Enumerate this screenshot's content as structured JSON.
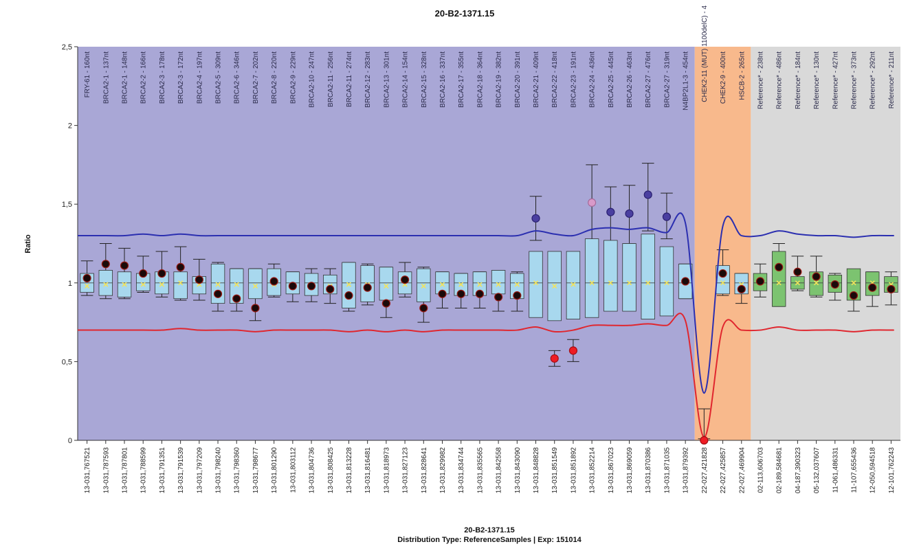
{
  "chart_data": {
    "type": "box",
    "title": "20-B2-1371.15",
    "footer_line1": "20-B2-1371.15",
    "footer_line2": "Distribution Type: ReferenceSamples | Exp: 151014",
    "ylabel": "Ratio",
    "ylim": [
      0,
      2.5
    ],
    "yticks": [
      "0",
      "0,5",
      "1",
      "1,5",
      "2",
      "2,5"
    ],
    "regions": [
      {
        "name": "target",
        "from": 0,
        "to": 33,
        "color": "#a9a7d6"
      },
      {
        "name": "mutation",
        "from": 33,
        "to": 36,
        "color": "#f8b98c"
      },
      {
        "name": "reference",
        "from": 36,
        "to": 44,
        "color": "#d9d9d9"
      }
    ],
    "probes": [
      "FRY-61 - 160nt",
      "BRCA2-1 - 137nt",
      "BRCA2-1 - 148nt",
      "BRCA2-2 - 166nt",
      "BRCA2-3 - 178nt",
      "BRCA2-3 - 172nt",
      "BRCA2-4 - 197nt",
      "BRCA2-5 - 309nt",
      "BRCA2-6 - 346nt",
      "BRCA2-7 - 202nt",
      "BRCA2-8 - 220nt",
      "BRCA2-9 - 229nt",
      "BRCA2-10 - 247nt",
      "BRCA2-11 - 256nt",
      "BRCA2-11 - 274nt",
      "BRCA2-12 - 283nt",
      "BRCA2-13 - 301nt",
      "BRCA2-14 - 154nt",
      "BRCA2-15 - 328nt",
      "BRCA2-16 - 337nt",
      "BRCA2-17 - 355nt",
      "BRCA2-18 - 364nt",
      "BRCA2-19 - 382nt",
      "BRCA2-20 - 391nt",
      "BRCA2-21 - 409nt",
      "BRCA2-22 - 418nt",
      "BRCA2-23 - 191nt",
      "BRCA2-24 - 436nt",
      "BRCA2-25 - 445nt",
      "BRCA2-26 - 463nt",
      "BRCA2-27 - 476nt",
      "BRCA2-27 - 319nt",
      "N4BP2L1-3 - 454nt",
      "CHEK2-11 (MUT) 1100delC) - 4",
      "CHEK2-9 - 400nt",
      "HSCB-2 - 265nt",
      "Reference* - 238nt",
      "Reference* - 486nt",
      "Reference* - 184nt",
      "Reference* - 130nt",
      "Reference* - 427nt",
      "Reference* - 373nt",
      "Reference* - 292nt",
      "Reference* - 211nt"
    ],
    "positions": [
      "13-031,767521",
      "13-031,787593",
      "13-031,787801",
      "13-031,788599",
      "13-031,791351",
      "13-031,791539",
      "13-031,797209",
      "13-031,798240",
      "13-031,798360",
      "13-031,798677",
      "13-031,801290",
      "13-031,803112",
      "13-031,804736",
      "13-031,808425",
      "13-031,813228",
      "13-031,816481",
      "13-031,818973",
      "13-031,827123",
      "13-031,828641",
      "13-031,829982",
      "13-031,834744",
      "13-031,835565",
      "13-031,842558",
      "13-031,843090",
      "13-031,848828",
      "13-031,851549",
      "13-031,851892",
      "13-031,852214",
      "13-031,867023",
      "13-031,869059",
      "13-031,870386",
      "13-031,871035",
      "13-031,879392",
      "22-027,421828",
      "22-027,425857",
      "22-027,469904",
      "02-113,606703",
      "02-189,584681",
      "04-187,390323",
      "05-132,037607",
      "11-061,486331",
      "11-107,655436",
      "12-050,594518",
      "12-101,762243"
    ],
    "box_low": [
      0.94,
      0.92,
      0.91,
      0.95,
      0.93,
      0.9,
      0.93,
      0.87,
      0.87,
      0.9,
      0.92,
      0.93,
      0.92,
      0.93,
      0.84,
      0.88,
      0.89,
      0.93,
      0.88,
      0.93,
      0.92,
      0.92,
      0.93,
      0.9,
      0.78,
      0.76,
      0.77,
      0.78,
      0.82,
      0.82,
      0.77,
      0.79,
      0.9,
      null,
      0.93,
      0.93,
      0.95,
      0.85,
      0.96,
      0.92,
      0.94,
      0.89,
      0.92,
      0.94
    ],
    "box_high": [
      1.06,
      1.08,
      1.07,
      1.06,
      1.07,
      1.07,
      1.04,
      1.12,
      1.09,
      1.09,
      1.09,
      1.07,
      1.06,
      1.05,
      1.13,
      1.11,
      1.1,
      1.07,
      1.09,
      1.07,
      1.06,
      1.07,
      1.08,
      1.06,
      1.2,
      1.2,
      1.2,
      1.28,
      1.27,
      1.25,
      1.31,
      1.23,
      1.12,
      null,
      1.11,
      1.06,
      1.06,
      1.2,
      1.04,
      1.07,
      1.05,
      1.09,
      1.07,
      1.04
    ],
    "medians": [
      0.98,
      0.99,
      0.99,
      0.99,
      0.99,
      1.0,
      0.99,
      0.99,
      0.99,
      0.98,
      0.99,
      0.98,
      0.98,
      0.98,
      0.99,
      0.99,
      0.98,
      0.99,
      0.98,
      0.99,
      0.99,
      0.99,
      0.99,
      0.99,
      1.0,
      0.98,
      0.99,
      1.0,
      1.0,
      1.0,
      1.0,
      1.0,
      1.0,
      null,
      1.0,
      0.99,
      1.0,
      1.0,
      1.0,
      1.0,
      0.99,
      1.0,
      1.0,
      0.99
    ],
    "whisker_low": [
      0.92,
      0.9,
      0.9,
      0.94,
      0.91,
      0.89,
      0.89,
      0.82,
      0.82,
      0.76,
      0.91,
      0.88,
      0.88,
      0.87,
      0.82,
      0.86,
      0.78,
      0.91,
      0.75,
      0.84,
      0.84,
      0.84,
      0.82,
      0.82,
      1.27,
      0.47,
      0.5,
      1.27,
      1.25,
      1.25,
      1.33,
      1.28,
      0.9,
      0.01,
      0.92,
      0.87,
      0.91,
      0.85,
      0.95,
      0.91,
      0.89,
      0.82,
      0.85,
      0.86
    ],
    "whisker_high": [
      1.14,
      1.25,
      1.22,
      1.17,
      1.2,
      1.23,
      1.15,
      1.13,
      1.09,
      1.09,
      1.12,
      1.07,
      1.09,
      1.09,
      1.13,
      1.12,
      1.1,
      1.13,
      1.1,
      1.07,
      1.06,
      1.07,
      1.08,
      1.07,
      1.55,
      0.57,
      0.64,
      1.75,
      1.61,
      1.62,
      1.76,
      1.57,
      1.12,
      0.2,
      1.21,
      1.06,
      1.12,
      1.25,
      1.17,
      1.17,
      1.06,
      1.07,
      1.07,
      1.07
    ],
    "sample_ratio": [
      1.03,
      1.12,
      1.11,
      1.06,
      1.06,
      1.1,
      1.02,
      0.93,
      0.9,
      0.84,
      1.01,
      0.98,
      0.98,
      0.96,
      0.92,
      0.97,
      0.87,
      1.02,
      0.84,
      0.93,
      0.93,
      0.93,
      0.91,
      0.92,
      1.41,
      0.52,
      0.57,
      1.51,
      1.45,
      1.44,
      1.56,
      1.42,
      1.01,
      0.0,
      1.06,
      0.96,
      1.01,
      1.1,
      1.07,
      1.04,
      0.99,
      0.92,
      0.97,
      0.96
    ],
    "point_status": [
      "normal",
      "normal",
      "normal",
      "normal",
      "normal",
      "normal",
      "normal",
      "normal",
      "normal",
      "normal",
      "normal",
      "normal",
      "normal",
      "normal",
      "normal",
      "normal",
      "normal",
      "normal",
      "normal",
      "normal",
      "normal",
      "normal",
      "normal",
      "normal",
      "gain",
      "loss",
      "loss",
      "gain-light",
      "gain",
      "gain",
      "gain",
      "gain",
      "normal",
      "loss",
      "normal",
      "normal",
      "normal",
      "normal",
      "normal",
      "normal",
      "normal",
      "normal",
      "normal",
      "normal"
    ],
    "upper_threshold": [
      1.3,
      1.3,
      1.3,
      1.31,
      1.3,
      1.31,
      1.3,
      1.3,
      1.3,
      1.3,
      1.3,
      1.3,
      1.3,
      1.3,
      1.3,
      1.3,
      1.3,
      1.3,
      1.3,
      1.3,
      1.3,
      1.3,
      1.3,
      1.3,
      1.33,
      1.31,
      1.3,
      1.34,
      1.35,
      1.34,
      1.35,
      1.32,
      1.38,
      0.3,
      1.36,
      1.3,
      1.3,
      1.33,
      1.31,
      1.3,
      1.3,
      1.29,
      1.3,
      1.3
    ],
    "lower_threshold": [
      0.7,
      0.7,
      0.7,
      0.7,
      0.7,
      0.71,
      0.7,
      0.7,
      0.7,
      0.69,
      0.7,
      0.7,
      0.7,
      0.7,
      0.69,
      0.7,
      0.69,
      0.7,
      0.69,
      0.7,
      0.7,
      0.7,
      0.7,
      0.7,
      0.72,
      0.69,
      0.7,
      0.73,
      0.73,
      0.73,
      0.74,
      0.73,
      0.76,
      0.02,
      0.72,
      0.7,
      0.7,
      0.72,
      0.7,
      0.7,
      0.7,
      0.69,
      0.7,
      0.7
    ],
    "colors": {
      "target_box": "#a8d8ee",
      "reference_box": "#7cc370",
      "box_stroke": "#333333",
      "upper_line": "#2b2fb0",
      "lower_line": "#e0262e",
      "median_marker": "#f2e35a",
      "point_normal": "#1a0a0a",
      "point_normal_ring": "#9a1a14",
      "point_gain": "#4a3fa0",
      "point_gain_light": "#d89ac9",
      "point_loss": "#ee1c24"
    }
  }
}
